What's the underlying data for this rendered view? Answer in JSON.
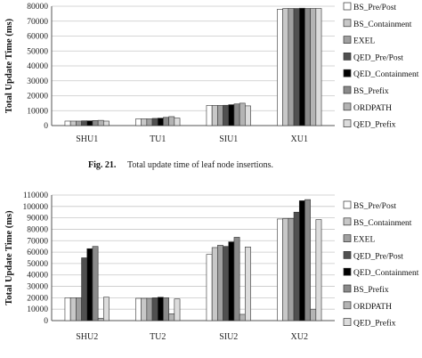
{
  "figure_captions": [
    {
      "label": "Fig. 21.",
      "text": "Total update time of leaf node insertions."
    }
  ],
  "chart_data": [
    {
      "type": "bar",
      "ylabel": "Total Update Time (ms)",
      "ylim": [
        0,
        80000
      ],
      "yticks": [
        0,
        10000,
        20000,
        30000,
        40000,
        50000,
        60000,
        70000,
        80000
      ],
      "categories": [
        "SHU1",
        "TU1",
        "SIU1",
        "XU1"
      ],
      "legend_position": "right",
      "series": [
        {
          "name": "BS_Pre/Post",
          "color": "#ffffff",
          "values": [
            3000,
            4500,
            13500,
            78000
          ]
        },
        {
          "name": "BS_Containment",
          "color": "#c8c8c8",
          "values": [
            3000,
            4500,
            13500,
            78500
          ]
        },
        {
          "name": "EXEL",
          "color": "#a0a0a0",
          "values": [
            3000,
            4500,
            13500,
            78500
          ]
        },
        {
          "name": "QED_Pre/Post",
          "color": "#505050",
          "values": [
            3200,
            4800,
            13600,
            78500
          ]
        },
        {
          "name": "QED_Containment",
          "color": "#000000",
          "values": [
            3200,
            5000,
            14000,
            78700
          ]
        },
        {
          "name": "BS_Prefix",
          "color": "#8a8a8a",
          "values": [
            3400,
            5500,
            14500,
            78500
          ]
        },
        {
          "name": "ORDPATH",
          "color": "#b4b4b4",
          "values": [
            3500,
            6000,
            15000,
            78500
          ]
        },
        {
          "name": "QED_Prefix",
          "color": "#dcdcdc",
          "values": [
            3000,
            5000,
            13200,
            78500
          ]
        }
      ]
    },
    {
      "type": "bar",
      "ylabel": "Total Update Time (ms)",
      "ylim": [
        0,
        110000
      ],
      "yticks": [
        0,
        10000,
        20000,
        30000,
        40000,
        50000,
        60000,
        70000,
        80000,
        90000,
        100000,
        110000
      ],
      "categories": [
        "SHU2",
        "TU2",
        "SIU2",
        "XU2"
      ],
      "legend_position": "right",
      "series": [
        {
          "name": "BS_Pre/Post",
          "color": "#ffffff",
          "values": [
            20000,
            19500,
            58000,
            89000
          ]
        },
        {
          "name": "BS_Containment",
          "color": "#c8c8c8",
          "values": [
            20000,
            19500,
            64000,
            89500
          ]
        },
        {
          "name": "EXEL",
          "color": "#a0a0a0",
          "values": [
            20000,
            19500,
            66000,
            89500
          ]
        },
        {
          "name": "QED_Pre/Post",
          "color": "#505050",
          "values": [
            55000,
            20000,
            65000,
            95000
          ]
        },
        {
          "name": "QED_Containment",
          "color": "#000000",
          "values": [
            63000,
            20500,
            69000,
            105000
          ]
        },
        {
          "name": "BS_Prefix",
          "color": "#8a8a8a",
          "values": [
            65000,
            20000,
            73000,
            106000
          ]
        },
        {
          "name": "ORDPATH",
          "color": "#b4b4b4",
          "values": [
            2000,
            6000,
            5500,
            10000
          ]
        },
        {
          "name": "QED_Prefix",
          "color": "#dcdcdc",
          "values": [
            20500,
            19000,
            64500,
            88500
          ]
        }
      ]
    }
  ]
}
